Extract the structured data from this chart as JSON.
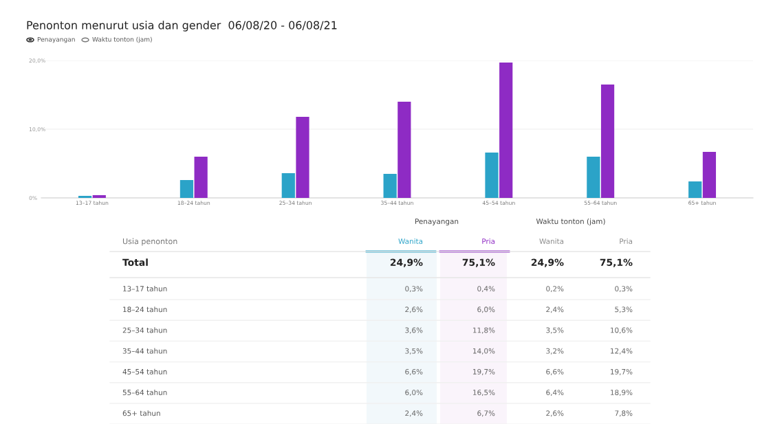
{
  "chart_data": {
    "type": "bar",
    "title": "Penonton menurut usia dan gender  06/08/20 - 06/08/21",
    "categories": [
      "13–17 tahun",
      "18–24 tahun",
      "25–34 tahun",
      "35–44 tahun",
      "45–54 tahun",
      "55–64 tahun",
      "65+ tahun"
    ],
    "series": [
      {
        "name": "Wanita",
        "color": "#2ba3c8",
        "values": [
          0.3,
          2.6,
          3.6,
          3.5,
          6.6,
          6.0,
          2.4
        ]
      },
      {
        "name": "Pria",
        "color": "#8e2bc4",
        "values": [
          0.4,
          6.0,
          11.8,
          14.0,
          19.7,
          16.5,
          6.7
        ]
      }
    ],
    "ylim": [
      0,
      20
    ],
    "yticks": [
      {
        "value": 0,
        "label": "0%"
      },
      {
        "value": 10,
        "label": "10,0%"
      },
      {
        "value": 20,
        "label": "20,0%"
      }
    ],
    "grid": "y",
    "annotations": [
      "Penayangan",
      "Waktu tonton (jam)",
      "Usia penonton",
      "Penayangan",
      "Waktu tonton (jam)",
      "Wanita",
      "Pria",
      "Total",
      "24,9%",
      "75,1%",
      "24,9%",
      "75,1%",
      "0,3%",
      "0,4%",
      "0,2%",
      "0,3%",
      "2,6%",
      "6,0%",
      "2,4%",
      "5,3%",
      "3,6%",
      "11,8%",
      "3,5%",
      "10,6%",
      "3,5%",
      "14,0%",
      "3,2%",
      "12,4%",
      "6,6%",
      "19,7%",
      "6,6%",
      "19,7%",
      "6,0%",
      "16,5%",
      "6,4%",
      "18,9%",
      "2,4%",
      "6,7%",
      "2,6%",
      "7,8%"
    ]
  }
}
